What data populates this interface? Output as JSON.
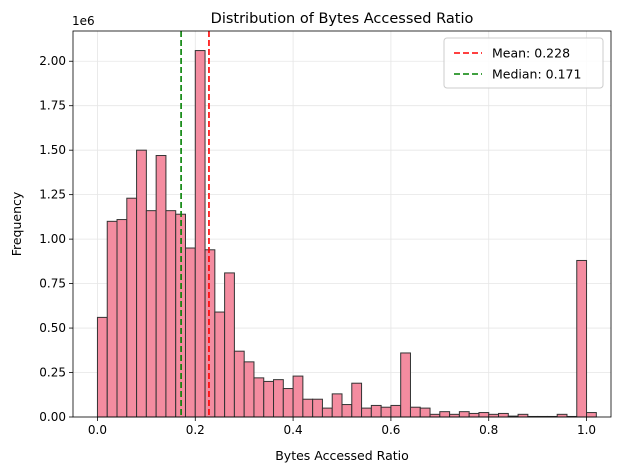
{
  "chart_data": {
    "type": "bar",
    "title": "Distribution of Bytes Accessed Ratio",
    "xlabel": "Bytes Accessed Ratio",
    "ylabel": "Frequency",
    "y_offset_text": "1e6",
    "xlim": [
      -0.05,
      1.05
    ],
    "ylim": [
      0,
      2.17
    ],
    "x_ticks": [
      0.0,
      0.2,
      0.4,
      0.6,
      0.8,
      1.0
    ],
    "x_tick_labels": [
      "0.0",
      "0.2",
      "0.4",
      "0.6",
      "0.8",
      "1.0"
    ],
    "y_ticks": [
      0.0,
      0.25,
      0.5,
      0.75,
      1.0,
      1.25,
      1.5,
      1.75,
      2.0
    ],
    "y_tick_labels": [
      "0.00",
      "0.25",
      "0.50",
      "0.75",
      "1.00",
      "1.25",
      "1.50",
      "1.75",
      "2.00"
    ],
    "grid": true,
    "bar_color": "#f48ca0",
    "bar_edge_color": "#333333",
    "bin_start": 0.0,
    "bin_width": 0.02,
    "values": [
      0.56,
      1.1,
      1.11,
      1.23,
      1.5,
      1.16,
      1.47,
      1.16,
      1.14,
      0.95,
      2.06,
      0.94,
      0.59,
      0.81,
      0.37,
      0.31,
      0.22,
      0.2,
      0.21,
      0.16,
      0.23,
      0.1,
      0.1,
      0.05,
      0.13,
      0.07,
      0.19,
      0.05,
      0.065,
      0.055,
      0.065,
      0.36,
      0.055,
      0.05,
      0.015,
      0.03,
      0.015,
      0.03,
      0.02,
      0.025,
      0.015,
      0.02,
      0.005,
      0.015,
      0.003,
      0.003,
      0.003,
      0.015,
      0.003,
      0.88,
      0.025
    ],
    "lines": [
      {
        "label": "Mean: 0.228",
        "x": 0.228,
        "color": "#ff0000",
        "style": "dashed"
      },
      {
        "label": "Median: 0.171",
        "x": 0.171,
        "color": "#008000",
        "style": "dashed"
      }
    ],
    "legend_position": "top-right"
  }
}
